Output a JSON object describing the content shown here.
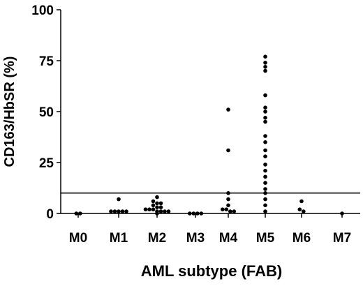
{
  "chart_data": {
    "type": "scatter",
    "title": "",
    "xlabel": "AML subtype (FAB)",
    "ylabel": "CD163/HbSR (%)",
    "categories": [
      "M0",
      "M1",
      "M2",
      "M3",
      "M4",
      "M5",
      "M6",
      "M7"
    ],
    "ylim": [
      0,
      100
    ],
    "yticks": [
      0,
      25,
      50,
      75,
      100
    ],
    "reference_line": 10,
    "grid": false,
    "legend": "none",
    "marker_color": "#000000",
    "series": [
      {
        "points": [
          {
            "x": "M0",
            "y": 0
          },
          {
            "x": "M0",
            "y": 0
          },
          {
            "x": "M1",
            "y": 7
          },
          {
            "x": "M1",
            "y": 1
          },
          {
            "x": "M1",
            "y": 1
          },
          {
            "x": "M1",
            "y": 1
          },
          {
            "x": "M1",
            "y": 1
          },
          {
            "x": "M1",
            "y": 1
          },
          {
            "x": "M2",
            "y": 8
          },
          {
            "x": "M2",
            "y": 6
          },
          {
            "x": "M2",
            "y": 5
          },
          {
            "x": "M2",
            "y": 5
          },
          {
            "x": "M2",
            "y": 4
          },
          {
            "x": "M2",
            "y": 3
          },
          {
            "x": "M2",
            "y": 3
          },
          {
            "x": "M2",
            "y": 2
          },
          {
            "x": "M2",
            "y": 2
          },
          {
            "x": "M2",
            "y": 2
          },
          {
            "x": "M2",
            "y": 1
          },
          {
            "x": "M2",
            "y": 1
          },
          {
            "x": "M2",
            "y": 1
          },
          {
            "x": "M2",
            "y": 1
          },
          {
            "x": "M2",
            "y": 0
          },
          {
            "x": "M3",
            "y": 0
          },
          {
            "x": "M3",
            "y": 0
          },
          {
            "x": "M3",
            "y": 0
          },
          {
            "x": "M3",
            "y": 0
          },
          {
            "x": "M4",
            "y": 51
          },
          {
            "x": "M4",
            "y": 31
          },
          {
            "x": "M4",
            "y": 10
          },
          {
            "x": "M4",
            "y": 7
          },
          {
            "x": "M4",
            "y": 4
          },
          {
            "x": "M4",
            "y": 2
          },
          {
            "x": "M4",
            "y": 2
          },
          {
            "x": "M4",
            "y": 1
          },
          {
            "x": "M4",
            "y": 1
          },
          {
            "x": "M5",
            "y": 77
          },
          {
            "x": "M5",
            "y": 74
          },
          {
            "x": "M5",
            "y": 72
          },
          {
            "x": "M5",
            "y": 70
          },
          {
            "x": "M5",
            "y": 58
          },
          {
            "x": "M5",
            "y": 52
          },
          {
            "x": "M5",
            "y": 50
          },
          {
            "x": "M5",
            "y": 47
          },
          {
            "x": "M5",
            "y": 45
          },
          {
            "x": "M5",
            "y": 38
          },
          {
            "x": "M5",
            "y": 35
          },
          {
            "x": "M5",
            "y": 31
          },
          {
            "x": "M5",
            "y": 28
          },
          {
            "x": "M5",
            "y": 24
          },
          {
            "x": "M5",
            "y": 21
          },
          {
            "x": "M5",
            "y": 18
          },
          {
            "x": "M5",
            "y": 15
          },
          {
            "x": "M5",
            "y": 12
          },
          {
            "x": "M5",
            "y": 10
          },
          {
            "x": "M5",
            "y": 7
          },
          {
            "x": "M5",
            "y": 4
          },
          {
            "x": "M5",
            "y": 1
          },
          {
            "x": "M6",
            "y": 6
          },
          {
            "x": "M6",
            "y": 2
          },
          {
            "x": "M6",
            "y": 1
          },
          {
            "x": "M7",
            "y": 0
          }
        ]
      }
    ]
  }
}
